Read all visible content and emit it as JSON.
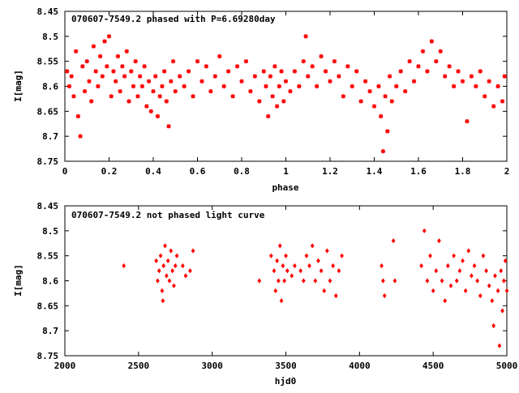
{
  "chart_data": [
    {
      "type": "scatter",
      "title": "070607-7549.2 phased with P=6.69280day",
      "xlabel": "phase",
      "ylabel": "I[mag]",
      "xlim": [
        0,
        2
      ],
      "ylim": [
        8.75,
        8.45
      ],
      "y_inverted": true,
      "grid": false,
      "marker": "plus-cross",
      "color": "#ff0000",
      "x_ticks": [
        "0",
        "0.2",
        "0.4",
        "0.6",
        "0.8",
        "1",
        "1.2",
        "1.4",
        "1.6",
        "1.8",
        "2"
      ],
      "y_ticks": [
        "8.45",
        "8.5",
        "8.55",
        "8.6",
        "8.65",
        "8.7",
        "8.75"
      ],
      "series": [
        {
          "points": [
            [
              0.01,
              8.57
            ],
            [
              0.02,
              8.6
            ],
            [
              0.03,
              8.58
            ],
            [
              0.04,
              8.62
            ],
            [
              0.05,
              8.53
            ],
            [
              0.06,
              8.66
            ],
            [
              0.07,
              8.7
            ],
            [
              0.08,
              8.56
            ],
            [
              0.09,
              8.61
            ],
            [
              0.1,
              8.55
            ],
            [
              0.11,
              8.59
            ],
            [
              0.12,
              8.63
            ],
            [
              0.13,
              8.52
            ],
            [
              0.14,
              8.57
            ],
            [
              0.15,
              8.6
            ],
            [
              0.16,
              8.54
            ],
            [
              0.17,
              8.58
            ],
            [
              0.18,
              8.51
            ],
            [
              0.19,
              8.56
            ],
            [
              0.2,
              8.5
            ],
            [
              0.21,
              8.62
            ],
            [
              0.22,
              8.57
            ],
            [
              0.23,
              8.59
            ],
            [
              0.24,
              8.54
            ],
            [
              0.25,
              8.61
            ],
            [
              0.26,
              8.56
            ],
            [
              0.27,
              8.58
            ],
            [
              0.28,
              8.53
            ],
            [
              0.29,
              8.63
            ],
            [
              0.3,
              8.57
            ],
            [
              0.31,
              8.6
            ],
            [
              0.32,
              8.55
            ],
            [
              0.33,
              8.62
            ],
            [
              0.34,
              8.58
            ],
            [
              0.35,
              8.6
            ],
            [
              0.36,
              8.56
            ],
            [
              0.37,
              8.64
            ],
            [
              0.38,
              8.59
            ],
            [
              0.39,
              8.65
            ],
            [
              0.4,
              8.61
            ],
            [
              0.41,
              8.58
            ],
            [
              0.42,
              8.66
            ],
            [
              0.43,
              8.62
            ],
            [
              0.44,
              8.6
            ],
            [
              0.45,
              8.57
            ],
            [
              0.46,
              8.63
            ],
            [
              0.47,
              8.68
            ],
            [
              0.48,
              8.59
            ],
            [
              0.49,
              8.55
            ],
            [
              0.5,
              8.61
            ],
            [
              0.52,
              8.58
            ],
            [
              0.54,
              8.6
            ],
            [
              0.56,
              8.57
            ],
            [
              0.58,
              8.62
            ],
            [
              0.6,
              8.55
            ],
            [
              0.62,
              8.59
            ],
            [
              0.64,
              8.56
            ],
            [
              0.66,
              8.61
            ],
            [
              0.68,
              8.58
            ],
            [
              0.7,
              8.54
            ],
            [
              0.72,
              8.6
            ],
            [
              0.74,
              8.57
            ],
            [
              0.76,
              8.62
            ],
            [
              0.78,
              8.56
            ],
            [
              0.8,
              8.59
            ],
            [
              0.82,
              8.55
            ],
            [
              0.84,
              8.61
            ],
            [
              0.86,
              8.58
            ],
            [
              0.88,
              8.63
            ],
            [
              0.9,
              8.57
            ],
            [
              0.91,
              8.6
            ],
            [
              0.92,
              8.66
            ],
            [
              0.93,
              8.58
            ],
            [
              0.94,
              8.62
            ],
            [
              0.95,
              8.56
            ],
            [
              0.96,
              8.64
            ],
            [
              0.97,
              8.6
            ],
            [
              0.98,
              8.57
            ],
            [
              0.99,
              8.63
            ],
            [
              1.0,
              8.59
            ],
            [
              1.02,
              8.61
            ],
            [
              1.04,
              8.57
            ],
            [
              1.06,
              8.6
            ],
            [
              1.08,
              8.55
            ],
            [
              1.09,
              8.5
            ],
            [
              1.1,
              8.58
            ],
            [
              1.12,
              8.56
            ],
            [
              1.14,
              8.6
            ],
            [
              1.16,
              8.54
            ],
            [
              1.18,
              8.57
            ],
            [
              1.2,
              8.59
            ],
            [
              1.22,
              8.55
            ],
            [
              1.24,
              8.58
            ],
            [
              1.26,
              8.62
            ],
            [
              1.28,
              8.56
            ],
            [
              1.3,
              8.6
            ],
            [
              1.32,
              8.57
            ],
            [
              1.34,
              8.63
            ],
            [
              1.36,
              8.59
            ],
            [
              1.38,
              8.61
            ],
            [
              1.4,
              8.64
            ],
            [
              1.42,
              8.6
            ],
            [
              1.43,
              8.66
            ],
            [
              1.44,
              8.73
            ],
            [
              1.45,
              8.62
            ],
            [
              1.46,
              8.69
            ],
            [
              1.47,
              8.58
            ],
            [
              1.48,
              8.63
            ],
            [
              1.5,
              8.6
            ],
            [
              1.52,
              8.57
            ],
            [
              1.54,
              8.61
            ],
            [
              1.56,
              8.55
            ],
            [
              1.58,
              8.59
            ],
            [
              1.6,
              8.56
            ],
            [
              1.62,
              8.53
            ],
            [
              1.64,
              8.57
            ],
            [
              1.66,
              8.51
            ],
            [
              1.68,
              8.55
            ],
            [
              1.7,
              8.53
            ],
            [
              1.72,
              8.58
            ],
            [
              1.74,
              8.56
            ],
            [
              1.76,
              8.6
            ],
            [
              1.78,
              8.57
            ],
            [
              1.8,
              8.59
            ],
            [
              1.82,
              8.67
            ],
            [
              1.84,
              8.58
            ],
            [
              1.86,
              8.6
            ],
            [
              1.88,
              8.57
            ],
            [
              1.9,
              8.62
            ],
            [
              1.92,
              8.59
            ],
            [
              1.94,
              8.64
            ],
            [
              1.96,
              8.6
            ],
            [
              1.98,
              8.63
            ],
            [
              1.99,
              8.58
            ]
          ]
        }
      ]
    },
    {
      "type": "scatter",
      "title": "070607-7549.2 not phased light curve",
      "xlabel": "hjd0",
      "ylabel": "I[mag]",
      "xlim": [
        2000,
        5000
      ],
      "ylim": [
        8.75,
        8.45
      ],
      "y_inverted": true,
      "grid": false,
      "marker": "diamond",
      "color": "#ff0000",
      "x_ticks": [
        "2000",
        "2500",
        "3000",
        "3500",
        "4000",
        "4500",
        "5000"
      ],
      "y_ticks": [
        "8.45",
        "8.5",
        "8.55",
        "8.6",
        "8.65",
        "8.7",
        "8.75"
      ],
      "series": [
        {
          "points": [
            [
              2400,
              8.57
            ],
            [
              2620,
              8.56
            ],
            [
              2630,
              8.6
            ],
            [
              2640,
              8.58
            ],
            [
              2650,
              8.55
            ],
            [
              2660,
              8.62
            ],
            [
              2665,
              8.64
            ],
            [
              2670,
              8.57
            ],
            [
              2680,
              8.53
            ],
            [
              2690,
              8.59
            ],
            [
              2700,
              8.56
            ],
            [
              2710,
              8.6
            ],
            [
              2720,
              8.54
            ],
            [
              2730,
              8.58
            ],
            [
              2740,
              8.61
            ],
            [
              2750,
              8.57
            ],
            [
              2760,
              8.55
            ],
            [
              2800,
              8.57
            ],
            [
              2820,
              8.59
            ],
            [
              2850,
              8.58
            ],
            [
              2870,
              8.54
            ],
            [
              3320,
              8.6
            ],
            [
              3400,
              8.55
            ],
            [
              3420,
              8.58
            ],
            [
              3430,
              8.62
            ],
            [
              3440,
              8.56
            ],
            [
              3450,
              8.6
            ],
            [
              3460,
              8.53
            ],
            [
              3470,
              8.64
            ],
            [
              3480,
              8.57
            ],
            [
              3490,
              8.6
            ],
            [
              3500,
              8.55
            ],
            [
              3510,
              8.58
            ],
            [
              3540,
              8.59
            ],
            [
              3560,
              8.57
            ],
            [
              3600,
              8.58
            ],
            [
              3620,
              8.6
            ],
            [
              3640,
              8.55
            ],
            [
              3660,
              8.57
            ],
            [
              3680,
              8.53
            ],
            [
              3700,
              8.6
            ],
            [
              3720,
              8.56
            ],
            [
              3740,
              8.58
            ],
            [
              3760,
              8.62
            ],
            [
              3780,
              8.54
            ],
            [
              3800,
              8.6
            ],
            [
              3820,
              8.57
            ],
            [
              3840,
              8.63
            ],
            [
              3860,
              8.58
            ],
            [
              3880,
              8.55
            ],
            [
              4150,
              8.57
            ],
            [
              4160,
              8.6
            ],
            [
              4170,
              8.63
            ],
            [
              4230,
              8.52
            ],
            [
              4240,
              8.6
            ],
            [
              4420,
              8.57
            ],
            [
              4440,
              8.5
            ],
            [
              4460,
              8.6
            ],
            [
              4480,
              8.55
            ],
            [
              4500,
              8.62
            ],
            [
              4520,
              8.58
            ],
            [
              4540,
              8.52
            ],
            [
              4560,
              8.6
            ],
            [
              4580,
              8.64
            ],
            [
              4600,
              8.57
            ],
            [
              4620,
              8.61
            ],
            [
              4640,
              8.55
            ],
            [
              4660,
              8.6
            ],
            [
              4680,
              8.58
            ],
            [
              4700,
              8.56
            ],
            [
              4720,
              8.62
            ],
            [
              4740,
              8.54
            ],
            [
              4760,
              8.59
            ],
            [
              4780,
              8.57
            ],
            [
              4800,
              8.6
            ],
            [
              4820,
              8.63
            ],
            [
              4840,
              8.55
            ],
            [
              4860,
              8.58
            ],
            [
              4880,
              8.61
            ],
            [
              4900,
              8.64
            ],
            [
              4910,
              8.69
            ],
            [
              4920,
              8.59
            ],
            [
              4940,
              8.62
            ],
            [
              4950,
              8.73
            ],
            [
              4960,
              8.58
            ],
            [
              4970,
              8.66
            ],
            [
              4980,
              8.6
            ],
            [
              4990,
              8.56
            ],
            [
              5000,
              8.62
            ]
          ]
        }
      ]
    }
  ]
}
